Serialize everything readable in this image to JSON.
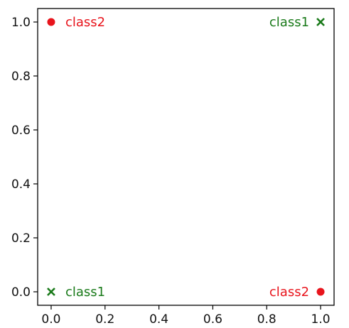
{
  "chart_data": {
    "type": "scatter",
    "title": "",
    "xlabel": "",
    "ylabel": "",
    "xlim": [
      -0.05,
      1.05
    ],
    "ylim": [
      -0.05,
      1.05
    ],
    "xticks": [
      "0.0",
      "0.2",
      "0.4",
      "0.6",
      "0.8",
      "1.0"
    ],
    "yticks": [
      "0.0",
      "0.2",
      "0.4",
      "0.6",
      "0.8",
      "1.0"
    ],
    "grid": false,
    "legend": "none",
    "points": [
      {
        "x": 0,
        "y": 0,
        "label": "class1",
        "marker": "x",
        "color": "#1a7a1a",
        "label_side": "right"
      },
      {
        "x": 1,
        "y": 1,
        "label": "class1",
        "marker": "x",
        "color": "#1a7a1a",
        "label_side": "left"
      },
      {
        "x": 0,
        "y": 1,
        "label": "class2",
        "marker": "circle",
        "color": "#e8141c",
        "label_side": "right"
      },
      {
        "x": 1,
        "y": 0,
        "label": "class2",
        "marker": "circle",
        "color": "#e8141c",
        "label_side": "left"
      }
    ]
  }
}
